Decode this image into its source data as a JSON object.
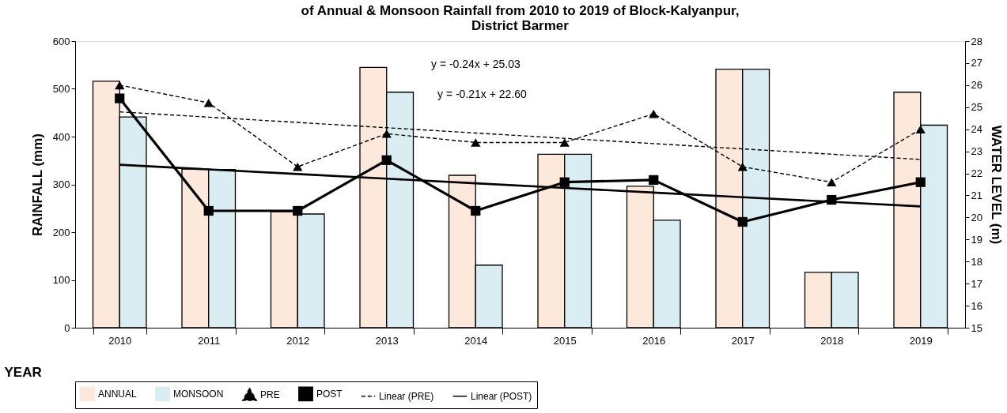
{
  "chart_data": {
    "type": "bar",
    "title": "of Annual & Monsoon Rainfall from 2010 to 2019 of Block-Kalyanpur,\nDistrict Barmer",
    "xlabel": "YEAR",
    "ylabel": "RAINFALL  (mm)",
    "y2label": "WATER LEVEL (m)",
    "categories": [
      "2010",
      "2011",
      "2012",
      "2013",
      "2014",
      "2015",
      "2016",
      "2017",
      "2018",
      "2019"
    ],
    "series": [
      {
        "name": "ANNUAL",
        "type": "bar",
        "color": "#fce9db",
        "values": [
          516,
          332,
          243,
          545,
          319,
          363,
          296,
          541,
          116,
          493
        ]
      },
      {
        "name": "MONSOON",
        "type": "bar",
        "color": "#daedf3",
        "values": [
          441,
          331,
          238,
          493,
          131,
          363,
          225,
          541,
          116,
          424
        ]
      },
      {
        "name": "PRE",
        "type": "line",
        "axis": "y2",
        "color": "#000000",
        "line_style": "dashed",
        "marker": "triangle",
        "values": [
          26.0,
          25.2,
          22.3,
          23.8,
          23.4,
          23.4,
          24.7,
          22.3,
          21.6,
          24.0
        ]
      },
      {
        "name": "POST",
        "type": "line",
        "axis": "y2",
        "color": "#000000",
        "line_style": "solid",
        "marker": "square",
        "values": [
          25.4,
          20.3,
          20.3,
          22.6,
          20.3,
          21.6,
          21.7,
          19.8,
          20.8,
          21.6
        ]
      },
      {
        "name": "Linear (PRE)",
        "type": "line",
        "axis": "y2",
        "color": "#000000",
        "line_style": "dashed",
        "marker": "none",
        "values": [
          24.79,
          24.55,
          24.31,
          24.07,
          23.83,
          23.59,
          23.35,
          23.11,
          22.87,
          22.63
        ]
      },
      {
        "name": "Linear (POST)",
        "type": "line",
        "axis": "y2",
        "color": "#000000",
        "line_style": "solid",
        "marker": "none",
        "values": [
          22.39,
          22.18,
          21.97,
          21.76,
          21.55,
          21.34,
          21.13,
          20.92,
          20.71,
          20.5
        ]
      }
    ],
    "ylim": [
      0,
      600
    ],
    "yticks": [
      0,
      100,
      200,
      300,
      400,
      500,
      600
    ],
    "y2lim": [
      15,
      28
    ],
    "y2ticks": [
      15,
      16,
      17,
      18,
      19,
      20,
      21,
      22,
      23,
      24,
      25,
      26,
      27,
      28
    ],
    "annotations": [
      "y = -0.24x + 25.03",
      "y = -0.21x + 22.60"
    ],
    "grid": false,
    "legend": "bottom"
  }
}
